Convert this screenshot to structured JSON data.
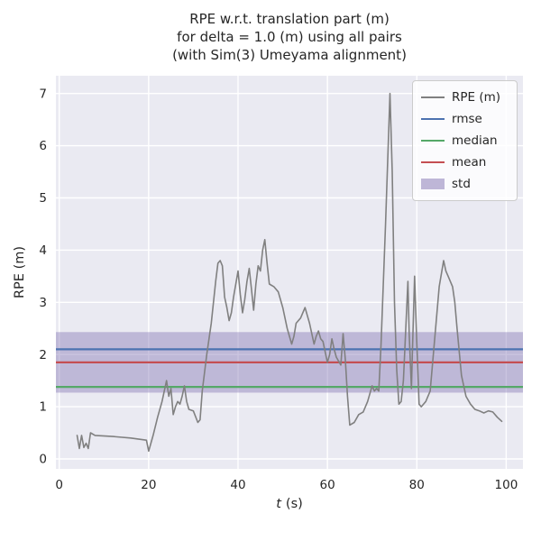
{
  "chart_data": {
    "type": "line",
    "title_lines": [
      "RPE w.r.t. translation part (m)",
      "for delta = 1.0 (m) using all pairs",
      "(with Sim(3) Umeyama alignment)"
    ],
    "xlabel_var": "t",
    "xlabel_unit": "(s)",
    "ylabel": "RPE (m)",
    "xlim": [
      -0.75,
      103.75
    ],
    "ylim": [
      -0.19,
      7.34
    ],
    "xticks": [
      0,
      20,
      40,
      60,
      80,
      100
    ],
    "yticks": [
      0,
      1,
      2,
      3,
      4,
      5,
      6,
      7
    ],
    "grid": true,
    "legend_position": "upper right",
    "stats": {
      "rmse": 2.1,
      "mean": 1.85,
      "median": 1.38,
      "std": 0.58,
      "std_band": [
        1.27,
        2.43
      ]
    },
    "colors": {
      "figure_background": "#ffffff",
      "axes_background": "#eaeaf2",
      "grid": "#ffffff",
      "text": "#262626",
      "rpe": "#808080",
      "rmse": "#4c72b0",
      "median": "#55a868",
      "mean": "#c44e52",
      "std": "#8172b2"
    },
    "legend": [
      {
        "label": "RPE (m)",
        "color": "#808080",
        "marker": "line"
      },
      {
        "label": "rmse",
        "color": "#4c72b0",
        "marker": "line"
      },
      {
        "label": "median",
        "color": "#55a868",
        "marker": "line"
      },
      {
        "label": "mean",
        "color": "#c44e52",
        "marker": "line"
      },
      {
        "label": "std",
        "color": "#8172b2",
        "marker": "band"
      }
    ],
    "series": [
      {
        "name": "std",
        "type": "hband",
        "color": "#8172b2",
        "range": [
          1.27,
          2.43
        ],
        "opacity": 0.42
      },
      {
        "name": "rmse",
        "type": "hline",
        "color": "#4c72b0",
        "value": 2.1
      },
      {
        "name": "median",
        "type": "hline",
        "color": "#55a868",
        "value": 1.38
      },
      {
        "name": "mean",
        "type": "hline",
        "color": "#c44e52",
        "value": 1.85
      },
      {
        "name": "RPE (m)",
        "type": "line",
        "color": "#808080",
        "points": [
          [
            4,
            0.45
          ],
          [
            4.5,
            0.2
          ],
          [
            5,
            0.45
          ],
          [
            5.5,
            0.22
          ],
          [
            6,
            0.3
          ],
          [
            6.5,
            0.2
          ],
          [
            7,
            0.5
          ],
          [
            8,
            0.45
          ],
          [
            12,
            0.43
          ],
          [
            16,
            0.4
          ],
          [
            19.5,
            0.36
          ],
          [
            20,
            0.15
          ],
          [
            21,
            0.45
          ],
          [
            22,
            0.8
          ],
          [
            23,
            1.1
          ],
          [
            24,
            1.5
          ],
          [
            24.5,
            1.2
          ],
          [
            25,
            1.35
          ],
          [
            25.5,
            0.85
          ],
          [
            26,
            1.0
          ],
          [
            26.5,
            1.1
          ],
          [
            27,
            1.05
          ],
          [
            27.5,
            1.2
          ],
          [
            28,
            1.4
          ],
          [
            28.5,
            1.1
          ],
          [
            29,
            0.95
          ],
          [
            30,
            0.92
          ],
          [
            31,
            0.7
          ],
          [
            31.5,
            0.75
          ],
          [
            32,
            1.3
          ],
          [
            33,
            2.0
          ],
          [
            34,
            2.6
          ],
          [
            35,
            3.4
          ],
          [
            35.5,
            3.75
          ],
          [
            36,
            3.8
          ],
          [
            36.5,
            3.7
          ],
          [
            37,
            3.1
          ],
          [
            37.5,
            2.9
          ],
          [
            38,
            2.65
          ],
          [
            38.5,
            2.8
          ],
          [
            39,
            3.1
          ],
          [
            40,
            3.6
          ],
          [
            40.5,
            3.15
          ],
          [
            41,
            2.8
          ],
          [
            41.5,
            3.05
          ],
          [
            42,
            3.4
          ],
          [
            42.5,
            3.65
          ],
          [
            43,
            3.25
          ],
          [
            43.5,
            2.85
          ],
          [
            44,
            3.35
          ],
          [
            44.5,
            3.7
          ],
          [
            45,
            3.6
          ],
          [
            45.5,
            4.0
          ],
          [
            46,
            4.2
          ],
          [
            46.5,
            3.75
          ],
          [
            47,
            3.35
          ],
          [
            48,
            3.3
          ],
          [
            49,
            3.2
          ],
          [
            50,
            2.9
          ],
          [
            51,
            2.5
          ],
          [
            52,
            2.2
          ],
          [
            52.5,
            2.35
          ],
          [
            53,
            2.6
          ],
          [
            54,
            2.7
          ],
          [
            55,
            2.9
          ],
          [
            55.5,
            2.75
          ],
          [
            56,
            2.6
          ],
          [
            57,
            2.2
          ],
          [
            57.5,
            2.35
          ],
          [
            58,
            2.45
          ],
          [
            58.5,
            2.3
          ],
          [
            59,
            2.25
          ],
          [
            60,
            1.85
          ],
          [
            60.5,
            2.0
          ],
          [
            61,
            2.3
          ],
          [
            61.5,
            2.1
          ],
          [
            62,
            1.95
          ],
          [
            63,
            1.8
          ],
          [
            63.5,
            2.4
          ],
          [
            64,
            1.9
          ],
          [
            64.5,
            1.2
          ],
          [
            65,
            0.65
          ],
          [
            66,
            0.7
          ],
          [
            67,
            0.85
          ],
          [
            68,
            0.9
          ],
          [
            69,
            1.1
          ],
          [
            70,
            1.4
          ],
          [
            70.5,
            1.3
          ],
          [
            71,
            1.35
          ],
          [
            71.5,
            1.3
          ],
          [
            72,
            2.2
          ],
          [
            73,
            4.5
          ],
          [
            74,
            7.0
          ],
          [
            74.5,
            5.5
          ],
          [
            75,
            3.0
          ],
          [
            75.5,
            1.7
          ],
          [
            76,
            1.05
          ],
          [
            76.5,
            1.1
          ],
          [
            77,
            1.5
          ],
          [
            78,
            3.4
          ],
          [
            78.3,
            2.4
          ],
          [
            78.8,
            1.35
          ],
          [
            79,
            2.0
          ],
          [
            79.5,
            3.5
          ],
          [
            80,
            2.2
          ],
          [
            80.5,
            1.05
          ],
          [
            81,
            1.0
          ],
          [
            82,
            1.1
          ],
          [
            83,
            1.3
          ],
          [
            84,
            2.3
          ],
          [
            85,
            3.3
          ],
          [
            86,
            3.8
          ],
          [
            86.5,
            3.6
          ],
          [
            87,
            3.5
          ],
          [
            88,
            3.3
          ],
          [
            88.5,
            3.0
          ],
          [
            89,
            2.5
          ],
          [
            90,
            1.6
          ],
          [
            91,
            1.2
          ],
          [
            92,
            1.05
          ],
          [
            93,
            0.95
          ],
          [
            94,
            0.92
          ],
          [
            95,
            0.88
          ],
          [
            96,
            0.92
          ],
          [
            97,
            0.9
          ],
          [
            98,
            0.8
          ],
          [
            99,
            0.72
          ]
        ]
      }
    ]
  }
}
